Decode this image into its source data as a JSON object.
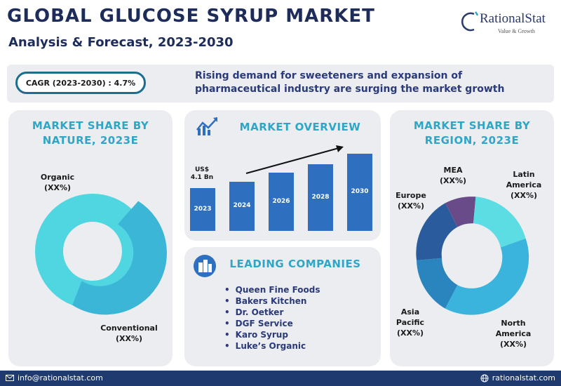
{
  "header": {
    "title": "GLOBAL GLUCOSE SYRUP MARKET",
    "subtitle": "Analysis & Forecast, 2023-2030"
  },
  "logo": {
    "name": "RationalStat",
    "tagline": "Value & Growth"
  },
  "banner": {
    "cagr": "CAGR (2023-2030) : 4.7%",
    "text": "Rising demand for sweeteners and expansion of pharmaceutical industry are surging the market growth"
  },
  "nature_card": {
    "title": "MARKET SHARE BY NATURE, 2023E",
    "labels": [
      {
        "name": "Organic",
        "value": "(XX%)"
      },
      {
        "name": "Conventional",
        "value": "(XX%)"
      }
    ]
  },
  "overview_card": {
    "title": "MARKET OVERVIEW",
    "first_value": "US$ 4.1 Bn",
    "years": [
      "2023",
      "2024",
      "2026",
      "2028",
      "2030"
    ],
    "levels": [
      0.55,
      0.64,
      0.75,
      0.86,
      1.0
    ]
  },
  "companies_card": {
    "title": "LEADING COMPANIES",
    "items": [
      "Queen Fine Foods",
      "Bakers Kitchen",
      "Dr. Oetker",
      "DGF Service",
      "Karo Syrup",
      "Luke’s Organic"
    ]
  },
  "region_card": {
    "title": "MARKET SHARE BY REGION, 2023E",
    "labels": [
      {
        "name": "MEA",
        "value": "(XX%)"
      },
      {
        "name": "Latin America",
        "value": "(XX%)"
      },
      {
        "name": "Europe",
        "value": "(XX%)"
      },
      {
        "name": "Asia Pacific",
        "value": "(XX%)"
      },
      {
        "name": "North America",
        "value": "(XX%)"
      }
    ]
  },
  "footer": {
    "email": "info@rationalstat.com",
    "website": "rationalstat.com"
  },
  "colors": {
    "title": "#1e2c5a",
    "accent": "#2ea7c7",
    "bar": "#2f6fc0",
    "footer": "#1e3a6e",
    "organic": "#4fd6e0",
    "conventional": "#3bb6d6",
    "mea": "#6a4b8a",
    "latin_america": "#5cdce3",
    "north_america": "#3ab4dc",
    "asia_pacific": "#2a84bd",
    "europe": "#2a5b9c"
  }
}
